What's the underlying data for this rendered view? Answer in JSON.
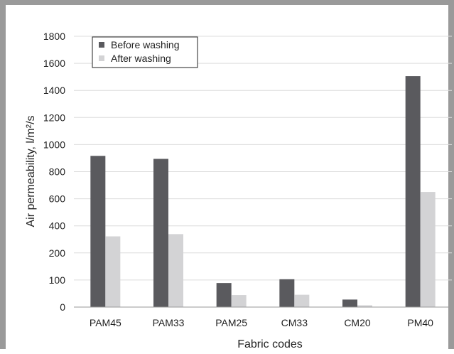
{
  "chart_data": {
    "type": "bar",
    "categories": [
      "PAM45",
      "PAM33",
      "PAM25",
      "CM33",
      "CM20",
      "PM40"
    ],
    "series": [
      {
        "name": "Before washing",
        "values": [
          1005,
          985,
          160,
          185,
          50,
          1535
        ],
        "color": "#5a5a5e"
      },
      {
        "name": "After washing",
        "values": [
          470,
          485,
          80,
          82,
          12,
          765
        ],
        "color": "#d3d3d5"
      }
    ],
    "y_tick_labels": [
      "0",
      "100",
      "200",
      "400",
      "600",
      "800",
      "1000",
      "1200",
      "1400",
      "1600",
      "1800"
    ],
    "xlabel": "Fabric codes",
    "ylabel": "Air permeability, l/m²/s",
    "ylim": [
      0,
      1800
    ],
    "grid": true,
    "legend_position": "top-left"
  }
}
